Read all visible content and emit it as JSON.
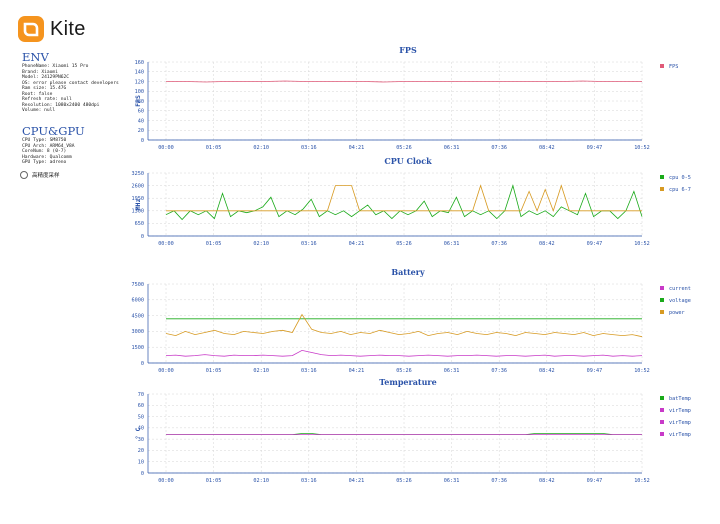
{
  "app": {
    "name": "Kite",
    "logo_icon": "kite-logo-icon",
    "brand_color": "#f5941e"
  },
  "env": {
    "title": "ENV",
    "lines": [
      "PhoneName: Xiaomi 15 Pro",
      "Brand: Xiaomi",
      "Model: 24129PN62C",
      "OS: error please contact developers",
      "Ram size: 15.47G",
      "Root: false",
      "Refresh rate: null",
      "Resolution: 1080x2400 480dpi",
      "Volume: null"
    ]
  },
  "cpugpu": {
    "title": "CPU&GPU",
    "lines": [
      "CPU Type: SM8750",
      "CPU Arch: ARM64_V8A",
      "CoreNum: 8 (0-7)",
      "Hardware: Qualcomm",
      "GPU Type: adreno"
    ]
  },
  "option": {
    "label": "高精度采样",
    "checked": false
  },
  "chart_data": [
    {
      "type": "line",
      "title": "FPS",
      "ylabel": "FPS",
      "ylim": [
        0,
        160
      ],
      "yticks": [
        0,
        20,
        40,
        60,
        80,
        100,
        120,
        140,
        160
      ],
      "xticks": [
        "00:00",
        "01:05",
        "02:10",
        "03:16",
        "04:21",
        "05:26",
        "06:31",
        "07:36",
        "08:42",
        "09:47",
        "10:52"
      ],
      "grid": true,
      "legend_position": "right",
      "series": [
        {
          "name": "FPS",
          "color": "#e05a78",
          "values": [
            120,
            120,
            119,
            120,
            120,
            120,
            121,
            120,
            120,
            120,
            120,
            119,
            120,
            120,
            120,
            120,
            120,
            120,
            120,
            120,
            120,
            121,
            120,
            120,
            120
          ]
        }
      ]
    },
    {
      "type": "line",
      "title": "CPU Clock",
      "ylabel": "MHz",
      "ylim": [
        0,
        3250
      ],
      "yticks": [
        0,
        650,
        1300,
        1950,
        2600,
        3250
      ],
      "xticks": [
        "00:00",
        "01:05",
        "02:10",
        "03:16",
        "04:21",
        "05:26",
        "06:31",
        "07:36",
        "08:42",
        "09:47",
        "10:52"
      ],
      "grid": true,
      "legend_position": "right",
      "series": [
        {
          "name": "cpu 0-5",
          "color": "#1aaa1a",
          "values": [
            1100,
            1300,
            850,
            1300,
            1100,
            1300,
            900,
            2200,
            1000,
            1300,
            1200,
            1300,
            1500,
            2000,
            1000,
            1300,
            1100,
            1400,
            1900,
            1000,
            1300,
            1100,
            1300,
            1000,
            1300,
            1600,
            1100,
            1300,
            900,
            1300,
            1100,
            1300,
            1800,
            1000,
            1300,
            1200,
            2000,
            1000,
            1300,
            1100,
            1300,
            900,
            1300,
            2600,
            1000,
            1300,
            1100,
            1300,
            1000,
            1500,
            1300,
            1100,
            2200,
            1000,
            1300,
            1300,
            900,
            1300,
            2300,
            1000
          ]
        },
        {
          "name": "cpu 6-7",
          "color": "#d79a22",
          "values": [
            1300,
            1300,
            1300,
            1300,
            1300,
            1300,
            1300,
            1300,
            1300,
            1300,
            1300,
            1300,
            1300,
            1300,
            1300,
            1300,
            1300,
            1300,
            1300,
            1300,
            1300,
            2600,
            2600,
            2600,
            1300,
            1300,
            1300,
            1300,
            1300,
            1300,
            1300,
            1300,
            1300,
            1300,
            1300,
            1300,
            1300,
            1300,
            1300,
            2600,
            1300,
            1300,
            1300,
            1300,
            1300,
            2300,
            1300,
            2400,
            1300,
            2600,
            1300,
            1300,
            1300,
            1300,
            1300,
            1300,
            1300,
            1300,
            1300,
            1300
          ]
        }
      ]
    },
    {
      "type": "line",
      "title": "Battery",
      "ylim": [
        0,
        7500
      ],
      "yticks": [
        0,
        1500,
        3000,
        4500,
        6000,
        7500
      ],
      "xticks": [
        "00:00",
        "01:05",
        "02:10",
        "03:16",
        "04:21",
        "05:26",
        "06:31",
        "07:36",
        "08:42",
        "09:47",
        "10:52"
      ],
      "grid": true,
      "legend_position": "right",
      "series": [
        {
          "name": "current",
          "color": "#c83ac8",
          "values": [
            700,
            750,
            650,
            700,
            800,
            700,
            650,
            750,
            700,
            700,
            750,
            700,
            650,
            700,
            1200,
            1000,
            800,
            700,
            750,
            700,
            650,
            700,
            750,
            700,
            700,
            650,
            700,
            750,
            700,
            650,
            700,
            700,
            750,
            700,
            650,
            700,
            700,
            650,
            700,
            750,
            650,
            700,
            700,
            650,
            700,
            750,
            650,
            700,
            650,
            700
          ]
        },
        {
          "name": "voltage",
          "color": "#1aaa1a",
          "values": [
            4200,
            4200,
            4200,
            4200,
            4200,
            4200,
            4200,
            4200,
            4200,
            4200,
            4200,
            4200,
            4200,
            4200,
            4200,
            4200,
            4200,
            4200,
            4200,
            4200,
            4200,
            4200,
            4200,
            4200,
            4200,
            4200,
            4200,
            4200,
            4200,
            4200,
            4200,
            4200,
            4200,
            4200,
            4200,
            4200,
            4200,
            4200,
            4200,
            4200,
            4200,
            4200,
            4200,
            4200,
            4200,
            4200,
            4200,
            4200,
            4200,
            4200
          ]
        },
        {
          "name": "power",
          "color": "#d79a22",
          "values": [
            2800,
            2600,
            3000,
            2700,
            2900,
            3100,
            2800,
            2700,
            3000,
            2900,
            2800,
            3000,
            3100,
            2900,
            4600,
            3200,
            2900,
            2800,
            3000,
            2700,
            2900,
            2800,
            3100,
            2900,
            2700,
            2800,
            3000,
            2600,
            2800,
            2900,
            2700,
            3000,
            2800,
            2700,
            2900,
            2800,
            2600,
            2900,
            2800,
            2700,
            2900,
            2800,
            2700,
            2900,
            2600,
            2800,
            2700,
            2600,
            2700,
            2500
          ]
        }
      ]
    },
    {
      "type": "line",
      "title": "Temperature",
      "ylabel": "° C",
      "ylim": [
        0,
        70
      ],
      "yticks": [
        0,
        10,
        20,
        30,
        40,
        50,
        60,
        70
      ],
      "xticks": [
        "00:00",
        "01:05",
        "02:10",
        "03:16",
        "04:21",
        "05:26",
        "06:31",
        "07:36",
        "08:42",
        "09:47",
        "10:52"
      ],
      "grid": true,
      "legend_position": "right",
      "series": [
        {
          "name": "batTemp",
          "color": "#1aaa1a",
          "values": [
            34,
            34,
            34,
            34,
            34,
            34,
            34,
            34,
            34,
            34,
            34,
            34,
            34,
            34,
            35,
            35,
            34,
            34,
            34,
            34,
            34,
            34,
            34,
            34,
            34,
            34,
            34,
            34,
            34,
            34,
            34,
            34,
            34,
            34,
            34,
            34,
            34,
            34,
            35,
            35,
            35,
            35,
            35,
            35,
            35,
            35,
            34,
            34,
            34,
            34
          ]
        },
        {
          "name": "virTemp",
          "color": "#c83ac8",
          "values": [
            34,
            34,
            34,
            34,
            34,
            34,
            34,
            34,
            34,
            34,
            34,
            34,
            34,
            34,
            34,
            34,
            34,
            34,
            34,
            34,
            34,
            34,
            34,
            34,
            34,
            34,
            34,
            34,
            34,
            34,
            34,
            34,
            34,
            34,
            34,
            34,
            34,
            34,
            34,
            34,
            34,
            34,
            34,
            34,
            34,
            34,
            34,
            34,
            34,
            34
          ]
        },
        {
          "name": "virTemp",
          "color": "#c83ac8",
          "values": []
        },
        {
          "name": "virTemp",
          "color": "#c83ac8",
          "values": []
        }
      ]
    }
  ]
}
